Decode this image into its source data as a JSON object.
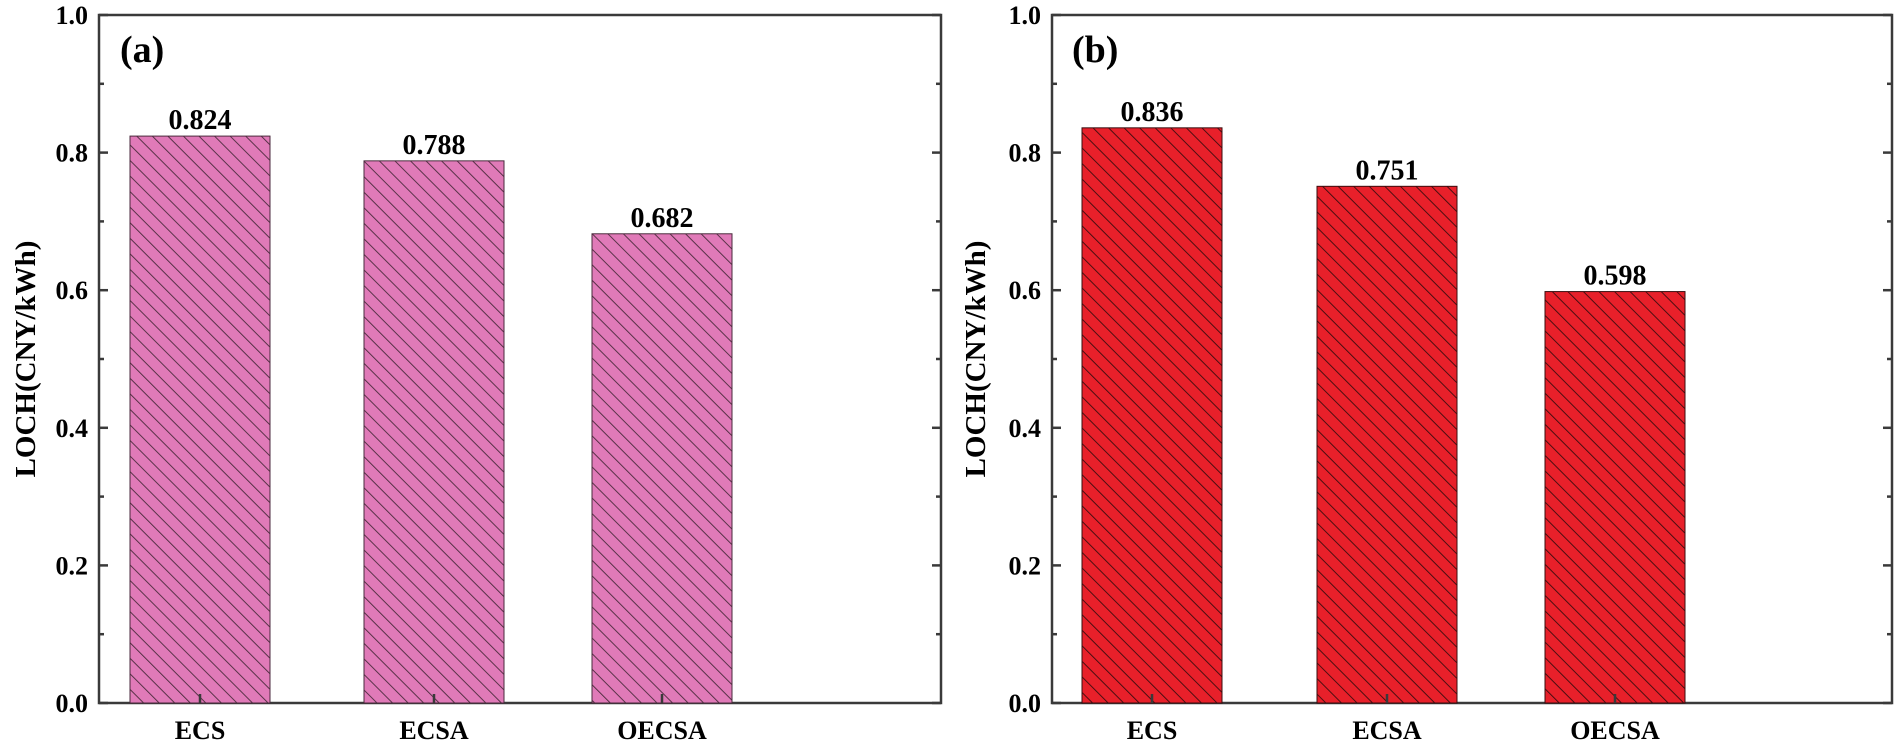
{
  "chart_data": [
    {
      "type": "bar",
      "panel_label": "(a)",
      "categories": [
        "ECS",
        "ECSA",
        "OECSA"
      ],
      "values": [
        0.824,
        0.788,
        0.682
      ],
      "value_labels": [
        "0.824",
        "0.788",
        "0.682"
      ],
      "ylabel": "LOCH(CNY/kWh)",
      "xlabel": "",
      "ylim": [
        0.0,
        1.0
      ],
      "yticks": [
        0.0,
        0.2,
        0.4,
        0.6,
        0.8,
        1.0
      ],
      "ytick_labels": [
        "0.0",
        "0.2",
        "0.4",
        "0.6",
        "0.8",
        "1.0"
      ],
      "bar_color": "#e07ab8",
      "hatch_color": "#4a2a3c",
      "hatch": "diagonal"
    },
    {
      "type": "bar",
      "panel_label": "(b)",
      "categories": [
        "ECS",
        "ECSA",
        "OECSA"
      ],
      "values": [
        0.836,
        0.751,
        0.598
      ],
      "value_labels": [
        "0.836",
        "0.751",
        "0.598"
      ],
      "ylabel": "LOCH(CNY/kWh)",
      "xlabel": "",
      "ylim": [
        0.0,
        1.0
      ],
      "yticks": [
        0.0,
        0.2,
        0.4,
        0.6,
        0.8,
        1.0
      ],
      "ytick_labels": [
        "0.0",
        "0.2",
        "0.4",
        "0.6",
        "0.8",
        "1.0"
      ],
      "bar_color": "#e8202a",
      "hatch_color": "#3a0c0e",
      "hatch": "diagonal"
    }
  ]
}
